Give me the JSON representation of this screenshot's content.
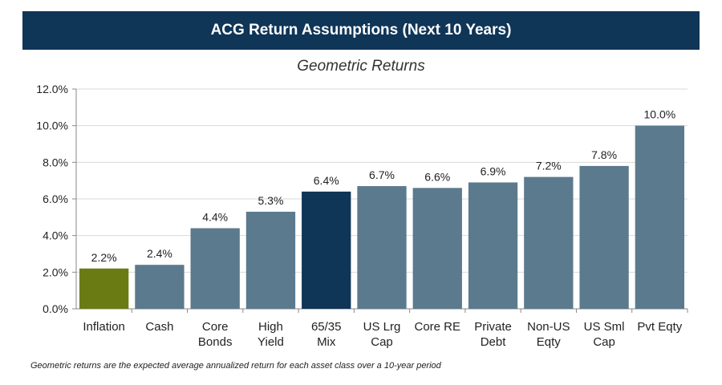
{
  "chart_data": {
    "type": "bar",
    "title": "ACG Return Assumptions (Next 10 Years)",
    "subtitle": "Geometric Returns",
    "categories": [
      [
        "Inflation"
      ],
      [
        "Cash"
      ],
      [
        "Core",
        "Bonds"
      ],
      [
        "High",
        "Yield"
      ],
      [
        "65/35",
        "Mix"
      ],
      [
        "US Lrg",
        "Cap"
      ],
      [
        "Core RE"
      ],
      [
        "Private",
        "Debt"
      ],
      [
        "Non-US",
        "Eqty"
      ],
      [
        "US Sml",
        "Cap"
      ],
      [
        "Pvt Eqty"
      ]
    ],
    "values": [
      2.2,
      2.4,
      4.4,
      5.3,
      6.4,
      6.7,
      6.6,
      6.9,
      7.2,
      7.8,
      10.0
    ],
    "value_labels": [
      "2.2%",
      "2.4%",
      "4.4%",
      "5.3%",
      "6.4%",
      "6.7%",
      "6.6%",
      "6.9%",
      "7.2%",
      "7.8%",
      "10.0%"
    ],
    "ylim": [
      0,
      12
    ],
    "yticks": [
      0,
      2,
      4,
      6,
      8,
      10,
      12
    ],
    "ytick_labels": [
      "0.0%",
      "2.0%",
      "4.0%",
      "6.0%",
      "8.0%",
      "10.0%",
      "12.0%"
    ],
    "grid": true,
    "colors": [
      "#6b7b14",
      "#5b7a8e",
      "#5b7a8e",
      "#5b7a8e",
      "#0f3557",
      "#5b7a8e",
      "#5b7a8e",
      "#5b7a8e",
      "#5b7a8e",
      "#5b7a8e",
      "#5b7a8e"
    ],
    "xlabel": "",
    "ylabel": ""
  },
  "footnote": "Geometric returns are the expected average annualized return for each asset class over a 10-year period"
}
